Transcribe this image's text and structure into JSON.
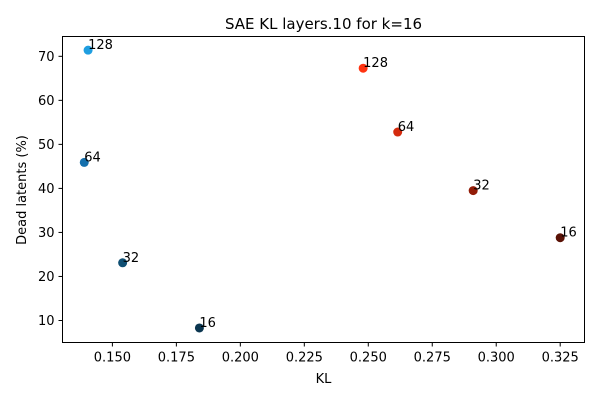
{
  "chart_data": {
    "type": "scatter",
    "title": "SAE KL layers.10 for k=16",
    "xlabel": "KL",
    "ylabel": "Dead latents (%)",
    "xlim": [
      0.1305,
      0.3345
    ],
    "ylim": [
      5.0,
      74.5
    ],
    "xticks": [
      0.15,
      0.175,
      0.2,
      0.225,
      0.25,
      0.275,
      0.3,
      0.325
    ],
    "xtick_labels": [
      "0.150",
      "0.175",
      "0.200",
      "0.225",
      "0.250",
      "0.275",
      "0.300",
      "0.325"
    ],
    "yticks": [
      10,
      20,
      30,
      40,
      50,
      60,
      70
    ],
    "ytick_labels": [
      "10",
      "20",
      "30",
      "40",
      "50",
      "60",
      "70"
    ],
    "grid": false,
    "series": [
      {
        "color_group": "blue",
        "points": [
          {
            "x": 0.1405,
            "y": 71.4,
            "label": "128",
            "color": "#1f9ee0"
          },
          {
            "x": 0.139,
            "y": 45.9,
            "label": "64",
            "color": "#1570ad"
          },
          {
            "x": 0.154,
            "y": 23.1,
            "label": "32",
            "color": "#0f4f73"
          },
          {
            "x": 0.184,
            "y": 8.3,
            "label": "16",
            "color": "#0b3650"
          }
        ]
      },
      {
        "color_group": "red",
        "points": [
          {
            "x": 0.248,
            "y": 67.3,
            "label": "128",
            "color": "#ff3311"
          },
          {
            "x": 0.2615,
            "y": 52.8,
            "label": "64",
            "color": "#d42a0d"
          },
          {
            "x": 0.291,
            "y": 39.5,
            "label": "32",
            "color": "#921c08"
          },
          {
            "x": 0.325,
            "y": 28.8,
            "label": "16",
            "color": "#5a1206"
          }
        ]
      }
    ]
  }
}
